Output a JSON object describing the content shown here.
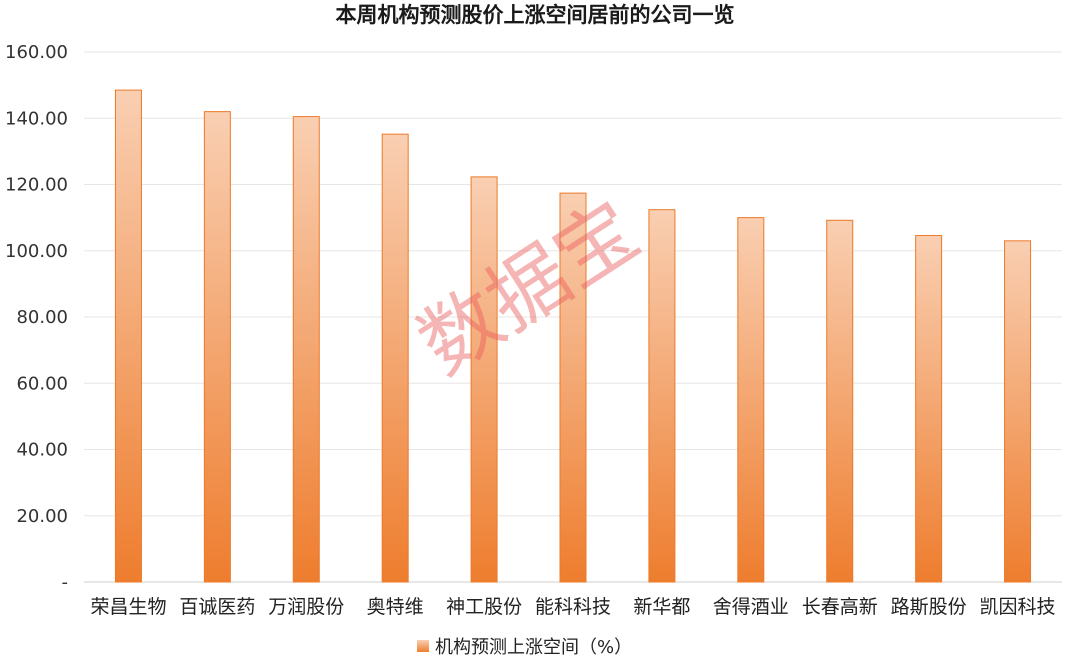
{
  "chart_data": {
    "type": "bar",
    "title": "本周机构预测股价上涨空间居前的公司一览",
    "categories": [
      "荣昌生物",
      "百诚医药",
      "万润股份",
      "奥特维",
      "神工股份",
      "能科科技",
      "新华都",
      "舍得酒业",
      "长春高新",
      "路斯股份",
      "凯因科技"
    ],
    "series": [
      {
        "name": "机构预测上涨空间（%）",
        "values": [
          148.5,
          142.0,
          140.5,
          135.2,
          122.3,
          117.4,
          112.4,
          110.0,
          109.2,
          104.6,
          103.0
        ]
      }
    ],
    "ylim": [
      0,
      160
    ],
    "yticks": [
      0,
      20,
      40,
      60,
      80,
      100,
      120,
      140,
      160
    ],
    "ytick_labels": [
      "-",
      "20.00",
      "40.00",
      "60.00",
      "80.00",
      "100.00",
      "120.00",
      "140.00",
      "160.00"
    ],
    "grid": true,
    "legend": "bottom-center",
    "colors": {
      "bar_top": "#f9cfb2",
      "bar_bottom": "#ee7d2e",
      "bar_stroke": "#ec7a2a",
      "grid": "#e6e6e6"
    }
  },
  "watermark": "数据宝"
}
